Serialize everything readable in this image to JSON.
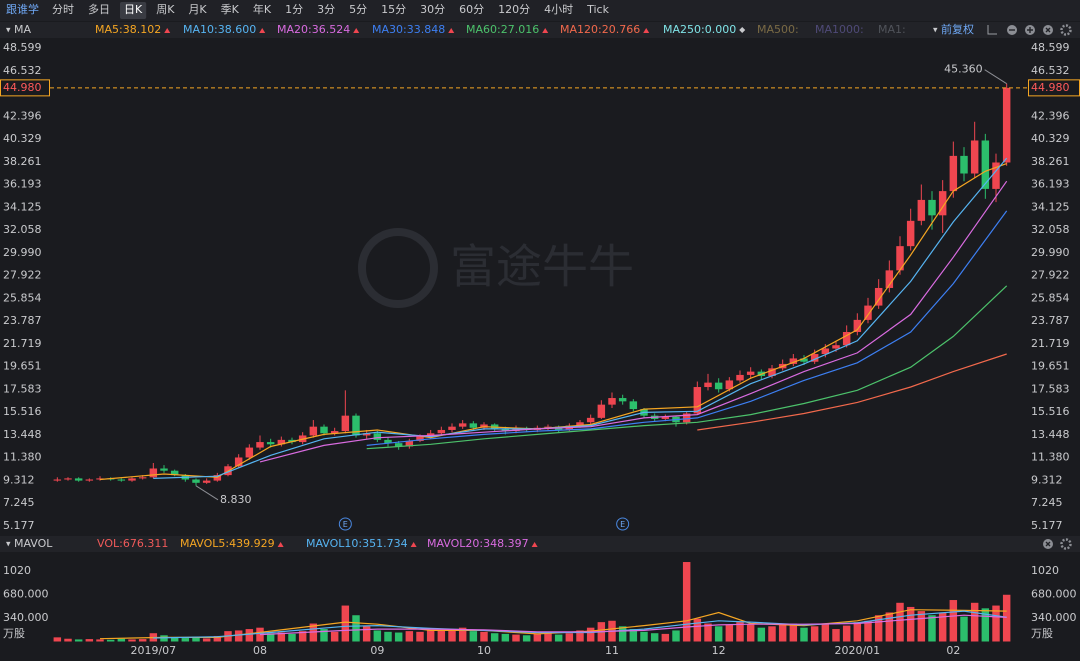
{
  "toolbar": {
    "brand": "跟谁学",
    "tabs": [
      "分时",
      "多日",
      "日K",
      "周K",
      "月K",
      "季K",
      "年K",
      "1分",
      "3分",
      "5分",
      "15分",
      "30分",
      "60分",
      "120分",
      "4小时",
      "Tick"
    ],
    "active": 2,
    "adjust": "前复权"
  },
  "watermark": "富途牛牛",
  "chart_data": [
    {
      "type": "candlestick",
      "title": "MA",
      "categories": [
        null,
        null,
        null,
        null,
        null,
        null,
        null,
        null,
        null,
        "2019/07",
        null,
        null,
        null,
        null,
        null,
        null,
        null,
        null,
        null,
        "08",
        null,
        null,
        null,
        null,
        null,
        null,
        null,
        null,
        null,
        null,
        "09",
        null,
        null,
        null,
        null,
        null,
        null,
        null,
        null,
        null,
        "10",
        null,
        null,
        null,
        null,
        null,
        null,
        null,
        null,
        null,
        null,
        null,
        "11",
        null,
        null,
        null,
        null,
        null,
        null,
        null,
        null,
        null,
        "12",
        null,
        null,
        null,
        null,
        null,
        null,
        null,
        null,
        null,
        null,
        null,
        null,
        "2020/01",
        null,
        null,
        null,
        null,
        null,
        null,
        null,
        null,
        "02",
        null,
        null,
        null,
        null,
        null
      ],
      "open": [
        9.3,
        9.4,
        9.5,
        9.3,
        9.4,
        9.5,
        9.4,
        9.3,
        9.5,
        9.6,
        10.4,
        10.2,
        9.8,
        9.4,
        9.1,
        9.3,
        9.8,
        10.6,
        11.4,
        12.3,
        12.8,
        12.6,
        13.0,
        12.8,
        13.4,
        14.2,
        13.6,
        13.8,
        15.2,
        13.4,
        13.6,
        13.0,
        12.7,
        12.4,
        12.9,
        13.3,
        13.6,
        13.9,
        14.2,
        14.5,
        14.1,
        14.4,
        14.0,
        13.8,
        14.0,
        13.9,
        14.1,
        14.2,
        13.9,
        14.3,
        14.6,
        15.0,
        16.2,
        16.8,
        16.5,
        15.8,
        15.2,
        14.9,
        15.1,
        14.6,
        15.4,
        17.8,
        18.2,
        17.6,
        18.4,
        18.9,
        19.2,
        18.8,
        19.5,
        19.9,
        20.4,
        20.1,
        20.8,
        21.3,
        21.6,
        22.8,
        23.9,
        25.2,
        26.8,
        28.4,
        30.6,
        32.9,
        34.8,
        33.4,
        35.6,
        38.8,
        37.2,
        40.2,
        35.8,
        38.2
      ],
      "high": [
        9.6,
        9.6,
        9.6,
        9.5,
        9.7,
        9.6,
        9.5,
        9.6,
        9.8,
        10.9,
        10.7,
        10.3,
        9.9,
        9.5,
        9.5,
        10.0,
        10.8,
        11.7,
        12.6,
        13.4,
        13.1,
        13.3,
        13.2,
        13.7,
        14.8,
        14.4,
        14.1,
        17.5,
        15.4,
        13.9,
        13.8,
        13.2,
        12.9,
        13.1,
        13.5,
        13.9,
        14.2,
        14.5,
        14.8,
        14.7,
        14.6,
        14.5,
        14.2,
        14.3,
        14.2,
        14.3,
        14.4,
        14.3,
        14.5,
        14.8,
        15.3,
        16.6,
        17.3,
        17.1,
        16.7,
        15.9,
        15.4,
        15.3,
        15.2,
        15.6,
        18.3,
        19.0,
        18.6,
        18.7,
        19.3,
        19.6,
        19.4,
        19.8,
        20.3,
        20.8,
        20.7,
        21.2,
        21.7,
        22.0,
        23.4,
        24.5,
        25.9,
        27.6,
        29.3,
        31.5,
        34.0,
        36.2,
        35.6,
        36.6,
        40.1,
        39.6,
        41.9,
        40.8,
        39.0,
        45.36
      ],
      "low": [
        9.2,
        9.3,
        9.2,
        9.2,
        9.3,
        9.3,
        9.2,
        9.2,
        9.4,
        9.5,
        10.0,
        9.7,
        9.2,
        8.83,
        9.0,
        9.2,
        9.7,
        10.5,
        11.2,
        12.1,
        12.3,
        12.4,
        12.6,
        12.6,
        13.2,
        13.4,
        13.4,
        13.6,
        13.2,
        13.1,
        12.8,
        12.4,
        12.1,
        12.2,
        12.8,
        13.1,
        13.4,
        13.7,
        14.0,
        13.9,
        13.9,
        13.8,
        13.5,
        13.6,
        13.7,
        13.7,
        13.9,
        13.7,
        13.8,
        14.1,
        14.4,
        14.9,
        15.9,
        16.2,
        15.6,
        15.0,
        14.7,
        14.7,
        14.2,
        14.4,
        15.3,
        17.5,
        17.3,
        17.4,
        18.2,
        18.6,
        18.5,
        18.6,
        19.3,
        19.7,
        19.8,
        19.9,
        20.5,
        21.0,
        21.4,
        22.5,
        23.6,
        24.9,
        26.4,
        28.0,
        30.2,
        32.5,
        32.1,
        31.8,
        35.0,
        36.5,
        36.8,
        34.9,
        34.6,
        37.9
      ],
      "close": [
        9.4,
        9.5,
        9.3,
        9.4,
        9.5,
        9.4,
        9.3,
        9.5,
        9.6,
        10.4,
        10.2,
        9.8,
        9.4,
        9.1,
        9.3,
        9.8,
        10.6,
        11.4,
        12.3,
        12.8,
        12.6,
        13.0,
        12.8,
        13.4,
        14.2,
        13.6,
        13.8,
        15.2,
        13.4,
        13.6,
        13.0,
        12.7,
        12.4,
        12.9,
        13.3,
        13.6,
        13.9,
        14.2,
        14.5,
        14.1,
        14.4,
        14.0,
        13.8,
        14.0,
        13.9,
        14.1,
        14.2,
        13.9,
        14.3,
        14.6,
        15.0,
        16.2,
        16.8,
        16.5,
        15.8,
        15.2,
        14.9,
        15.1,
        14.6,
        15.4,
        17.8,
        18.2,
        17.6,
        18.4,
        18.9,
        19.2,
        18.8,
        19.5,
        19.9,
        20.4,
        20.1,
        20.8,
        21.3,
        21.6,
        22.8,
        23.9,
        25.2,
        26.8,
        28.4,
        30.6,
        32.9,
        34.8,
        33.4,
        35.6,
        38.8,
        37.2,
        40.2,
        35.8,
        38.2,
        44.98
      ],
      "up_color": "#ef4650",
      "down_color": "#2cbf6c",
      "ylim": [
        4.63,
        49.51
      ],
      "yticks": [
        48.599,
        46.532,
        42.396,
        40.329,
        38.261,
        36.193,
        34.125,
        32.058,
        {
          "value": 29.99,
          "label": "29.990"
        },
        27.922,
        25.854,
        23.787,
        21.719,
        19.651,
        17.583,
        15.516,
        13.448,
        {
          "value": 11.38,
          "label": "11.380"
        },
        9.312,
        7.245,
        5.177
      ],
      "grid": false,
      "series": [
        {
          "name": "MA5",
          "legend": "MA5:38.102",
          "color": "#f5a623",
          "x": [
            4,
            10,
            15,
            20,
            25,
            30,
            35,
            40,
            45,
            50,
            55,
            60,
            65,
            70,
            75,
            80,
            84,
            87,
            89
          ],
          "values": [
            9.4,
            9.9,
            9.6,
            12.4,
            13.5,
            13.9,
            13.2,
            14.2,
            14.0,
            14.4,
            15.8,
            16.0,
            18.6,
            20.4,
            23.0,
            29.8,
            35.6,
            37.4,
            38.1
          ]
        },
        {
          "name": "MA10",
          "legend": "MA10:38.600",
          "color": "#56b4f2",
          "x": [
            9,
            15,
            20,
            25,
            30,
            35,
            40,
            45,
            50,
            55,
            60,
            65,
            70,
            75,
            80,
            84,
            89
          ],
          "values": [
            9.5,
            9.7,
            11.6,
            13.1,
            13.7,
            13.3,
            14.0,
            14.0,
            14.3,
            15.5,
            15.6,
            18.1,
            19.9,
            22.0,
            27.4,
            32.8,
            38.6
          ]
        },
        {
          "name": "MA20",
          "legend": "MA20:36.524",
          "color": "#d96be0",
          "x": [
            19,
            25,
            30,
            35,
            40,
            45,
            50,
            55,
            60,
            65,
            70,
            75,
            80,
            84,
            89
          ],
          "values": [
            11.0,
            12.5,
            13.2,
            13.4,
            13.7,
            14.0,
            14.2,
            15.0,
            15.3,
            17.2,
            19.2,
            20.9,
            24.4,
            29.6,
            36.5
          ]
        },
        {
          "name": "MA30",
          "legend": "MA30:33.848",
          "color": "#3d7ff2",
          "x": [
            29,
            35,
            40,
            45,
            50,
            55,
            60,
            65,
            70,
            75,
            80,
            84,
            89
          ],
          "values": [
            12.5,
            13.1,
            13.5,
            13.8,
            14.0,
            14.6,
            15.0,
            16.5,
            18.4,
            20.0,
            22.8,
            27.2,
            33.8
          ]
        },
        {
          "name": "MA60",
          "legend": "MA60:27.016",
          "color": "#4cc26b",
          "x": [
            29,
            35,
            40,
            45,
            50,
            55,
            60,
            65,
            70,
            75,
            80,
            84,
            89
          ],
          "values": [
            12.2,
            12.6,
            13.1,
            13.5,
            13.9,
            14.3,
            14.6,
            15.3,
            16.3,
            17.5,
            19.6,
            22.4,
            27.0
          ]
        },
        {
          "name": "MA120",
          "legend": "MA120:20.766",
          "color": "#f2694c",
          "x": [
            60,
            65,
            70,
            75,
            80,
            84,
            89
          ],
          "values": [
            13.9,
            14.6,
            15.4,
            16.4,
            17.8,
            19.2,
            20.8
          ]
        }
      ],
      "extra_legend": [
        {
          "legend": "MA250:0.000",
          "color": "#7fe3e6"
        },
        {
          "legend": "MA500:",
          "color": "#7a6a45"
        },
        {
          "legend": "MA1000:",
          "color": "#4f4a78"
        },
        {
          "legend": "MA1:",
          "color": "#50535a"
        }
      ],
      "current": {
        "value": 44.98,
        "label": "44.980"
      },
      "annotations": [
        {
          "index": 89,
          "value": 45.36,
          "label": "45.360"
        },
        {
          "index": 13,
          "value": 8.83,
          "label": "8.830"
        }
      ],
      "events": [
        {
          "index": 27,
          "label": "E"
        },
        {
          "index": 53,
          "label": "E"
        }
      ]
    },
    {
      "type": "bar",
      "title": "MAVOL",
      "legend": "VOL:676.311",
      "color": "#f05a5a",
      "values": [
        60,
        40,
        30,
        35,
        30,
        25,
        40,
        30,
        35,
        120,
        90,
        60,
        50,
        70,
        45,
        80,
        150,
        160,
        180,
        200,
        120,
        130,
        110,
        150,
        260,
        180,
        140,
        520,
        380,
        220,
        160,
        140,
        130,
        150,
        140,
        170,
        160,
        180,
        200,
        150,
        140,
        120,
        110,
        100,
        90,
        110,
        130,
        100,
        120,
        160,
        200,
        280,
        300,
        220,
        180,
        140,
        120,
        110,
        160,
        1150,
        330,
        260,
        220,
        240,
        280,
        250,
        200,
        220,
        240,
        260,
        200,
        220,
        250,
        180,
        230,
        280,
        300,
        380,
        420,
        560,
        500,
        440,
        380,
        420,
        600,
        360,
        560,
        480,
        520,
        676.311
      ],
      "ylim": [
        0,
        1295
      ],
      "yticks": [
        1020,
        {
          "value": 680,
          "label": "680.000"
        },
        {
          "value": 340,
          "label": "340.000"
        }
      ],
      "unit": "万股",
      "series": [
        {
          "name": "MAVOL5",
          "legend": "MAVOL5:439.929",
          "color": "#f5a623",
          "x": [
            4,
            10,
            15,
            20,
            27,
            30,
            35,
            40,
            45,
            50,
            55,
            59,
            62,
            65,
            70,
            75,
            80,
            85,
            89
          ],
          "values": [
            40,
            60,
            60,
            150,
            280,
            250,
            160,
            160,
            110,
            150,
            230,
            300,
            420,
            260,
            230,
            300,
            460,
            450,
            440
          ]
        },
        {
          "name": "MAVOL10",
          "legend": "MAVOL10:351.734",
          "color": "#56b4f2",
          "x": [
            9,
            15,
            20,
            27,
            30,
            35,
            40,
            45,
            50,
            55,
            59,
            62,
            65,
            70,
            75,
            80,
            85,
            89
          ],
          "values": [
            50,
            70,
            130,
            220,
            230,
            190,
            160,
            130,
            130,
            180,
            250,
            300,
            280,
            240,
            270,
            380,
            440,
            352
          ]
        },
        {
          "name": "MAVOL20",
          "legend": "MAVOL20:348.397",
          "color": "#d96be0",
          "x": [
            19,
            27,
            30,
            35,
            40,
            45,
            50,
            55,
            59,
            62,
            65,
            70,
            75,
            80,
            85,
            89
          ],
          "values": [
            100,
            160,
            180,
            180,
            170,
            140,
            140,
            160,
            210,
            240,
            250,
            250,
            260,
            320,
            380,
            348
          ]
        }
      ]
    }
  ]
}
